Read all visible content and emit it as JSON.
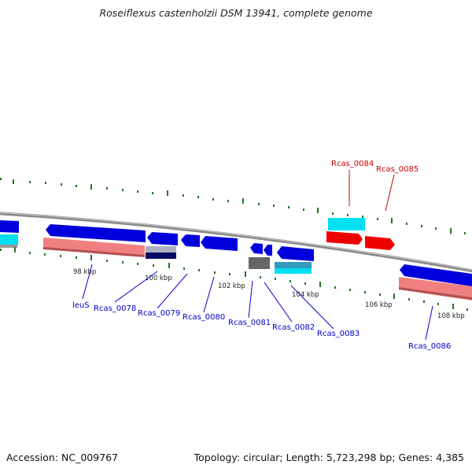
{
  "title": "Roseiflexus castenholzii DSM 13941, complete genome",
  "footer": {
    "accession": "Accession: NC_009767",
    "summary": "Topology: circular; Length: 5,723,298 bp; Genes: 4,385"
  },
  "colors": {
    "forward_cds": "#0000dd",
    "reverse_cds": "#0000dd",
    "highlight_cds": "#ee0000",
    "rna_cyan": "#00e0f0",
    "pink_band": "#f08080",
    "backbone": "#8a8a8a",
    "tick_green": "#227722",
    "label_blue": "#0000cc",
    "label_red": "#cc0000"
  },
  "position_labels": [
    "98 kbp",
    "100 kbp",
    "102 kbp",
    "104 kbp",
    "106 kbp",
    "108 kbp"
  ],
  "gene_labels": {
    "blue": [
      "leuS",
      "Rcas_0078",
      "Rcas_0079",
      "Rcas_0080",
      "Rcas_0081",
      "Rcas_0082",
      "Rcas_0083",
      "Rcas_0086"
    ],
    "red": [
      "Rcas_0084",
      "Rcas_0085"
    ]
  }
}
